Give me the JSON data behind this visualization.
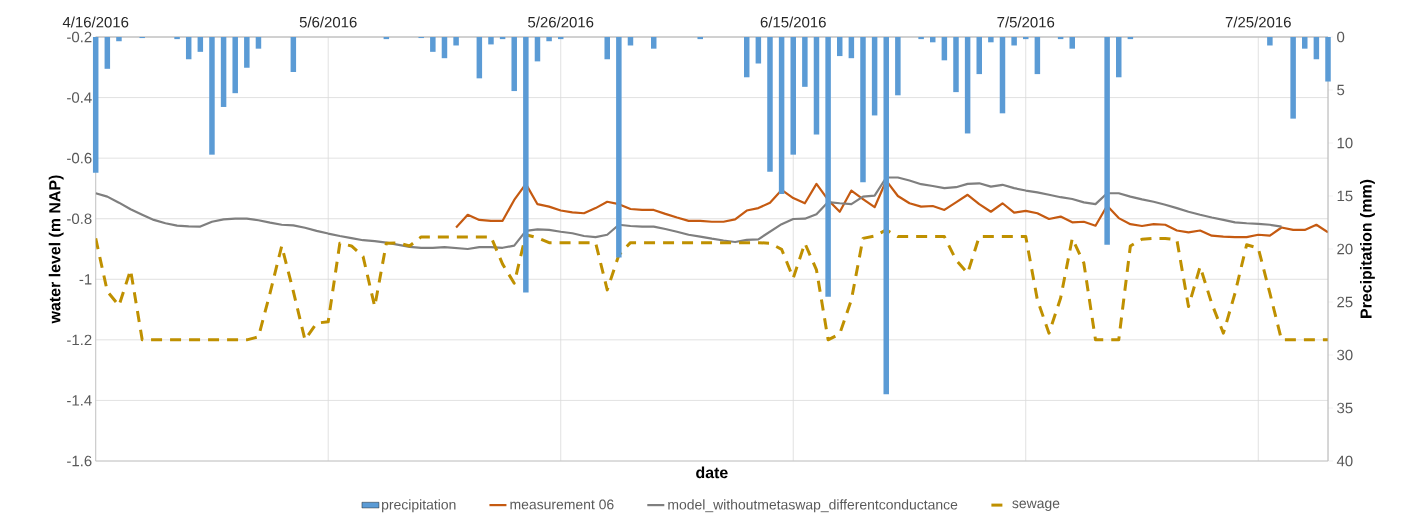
{
  "chart_data": {
    "type": "line",
    "xlabel": "date",
    "ylabel": "water level (m NAP)",
    "y2label": "Precipitation (mm)",
    "x": [
      "2016-04-16",
      "2016-04-17",
      "2016-04-18",
      "2016-04-19",
      "2016-04-20",
      "2016-04-21",
      "2016-04-22",
      "2016-04-23",
      "2016-04-24",
      "2016-04-25",
      "2016-04-26",
      "2016-04-27",
      "2016-04-28",
      "2016-04-29",
      "2016-04-30",
      "2016-05-01",
      "2016-05-02",
      "2016-05-03",
      "2016-05-04",
      "2016-05-05",
      "2016-05-06",
      "2016-05-07",
      "2016-05-08",
      "2016-05-09",
      "2016-05-10",
      "2016-05-11",
      "2016-05-12",
      "2016-05-13",
      "2016-05-14",
      "2016-05-15",
      "2016-05-16",
      "2016-05-17",
      "2016-05-18",
      "2016-05-19",
      "2016-05-20",
      "2016-05-21",
      "2016-05-22",
      "2016-05-23",
      "2016-05-24",
      "2016-05-25",
      "2016-05-26",
      "2016-05-27",
      "2016-05-28",
      "2016-05-29",
      "2016-05-30",
      "2016-05-31",
      "2016-06-01",
      "2016-06-02",
      "2016-06-03",
      "2016-06-04",
      "2016-06-05",
      "2016-06-06",
      "2016-06-07",
      "2016-06-08",
      "2016-06-09",
      "2016-06-10",
      "2016-06-11",
      "2016-06-12",
      "2016-06-13",
      "2016-06-14",
      "2016-06-15",
      "2016-06-16",
      "2016-06-17",
      "2016-06-18",
      "2016-06-19",
      "2016-06-20",
      "2016-06-21",
      "2016-06-22",
      "2016-06-23",
      "2016-06-24",
      "2016-06-25",
      "2016-06-26",
      "2016-06-27",
      "2016-06-28",
      "2016-06-29",
      "2016-06-30",
      "2016-07-01",
      "2016-07-02",
      "2016-07-03",
      "2016-07-04",
      "2016-07-05",
      "2016-07-06",
      "2016-07-07",
      "2016-07-08",
      "2016-07-09",
      "2016-07-10",
      "2016-07-11",
      "2016-07-12",
      "2016-07-13",
      "2016-07-14",
      "2016-07-15",
      "2016-07-16",
      "2016-07-17",
      "2016-07-18",
      "2016-07-19",
      "2016-07-20",
      "2016-07-21",
      "2016-07-22",
      "2016-07-23",
      "2016-07-24",
      "2016-07-25",
      "2016-07-26",
      "2016-07-27",
      "2016-07-28",
      "2016-07-29",
      "2016-07-30",
      "2016-07-31"
    ],
    "series": [
      {
        "name": "precipitation",
        "type": "bar",
        "axis": "y2",
        "color": "#5b9bd5",
        "values": [
          12.8,
          3.0,
          0.4,
          null,
          0.1,
          null,
          null,
          0.2,
          2.1,
          1.4,
          11.1,
          6.6,
          5.3,
          2.9,
          1.1,
          null,
          null,
          3.3,
          null,
          null,
          null,
          null,
          null,
          null,
          null,
          0.2,
          null,
          null,
          0.1,
          1.4,
          2.0,
          0.8,
          null,
          3.9,
          0.7,
          0.2,
          5.1,
          24.1,
          2.3,
          0.4,
          0.2,
          null,
          null,
          null,
          2.1,
          20.8,
          0.8,
          null,
          1.1,
          null,
          null,
          null,
          0.2,
          null,
          null,
          null,
          3.8,
          2.5,
          12.7,
          14.8,
          11.1,
          4.7,
          9.2,
          24.5,
          1.8,
          2.0,
          13.7,
          7.4,
          33.7,
          5.5,
          null,
          0.2,
          0.5,
          2.2,
          5.2,
          9.1,
          3.5,
          0.5,
          7.2,
          0.8,
          0.2,
          3.5,
          null,
          0.2,
          1.1,
          null,
          null,
          19.6,
          3.8,
          0.2,
          null,
          null,
          null,
          null,
          null,
          null,
          null,
          null,
          null,
          null,
          null,
          0.8,
          null,
          7.7,
          1.1,
          2.1,
          4.2
        ]
      },
      {
        "name": "measurement 06",
        "color": "#c55a11",
        "values": [
          null,
          null,
          null,
          null,
          null,
          null,
          null,
          null,
          null,
          null,
          null,
          null,
          null,
          null,
          null,
          null,
          null,
          null,
          null,
          null,
          null,
          null,
          null,
          null,
          null,
          null,
          null,
          null,
          null,
          null,
          null,
          -0.829,
          -0.787,
          -0.804,
          -0.807,
          -0.807,
          -0.738,
          -0.685,
          -0.752,
          -0.76,
          -0.773,
          -0.779,
          -0.782,
          -0.765,
          -0.744,
          -0.752,
          -0.768,
          -0.771,
          -0.771,
          -0.784,
          -0.796,
          -0.807,
          -0.807,
          -0.81,
          -0.81,
          -0.802,
          -0.773,
          -0.765,
          -0.747,
          -0.705,
          -0.732,
          -0.749,
          -0.685,
          -0.738,
          -0.777,
          -0.707,
          -0.735,
          -0.762,
          -0.674,
          -0.725,
          -0.749,
          -0.76,
          -0.758,
          -0.771,
          -0.746,
          -0.721,
          -0.752,
          -0.777,
          -0.749,
          -0.78,
          -0.774,
          -0.782,
          -0.801,
          -0.793,
          -0.812,
          -0.81,
          -0.823,
          -0.757,
          -0.798,
          -0.818,
          -0.824,
          -0.818,
          -0.82,
          -0.839,
          -0.845,
          -0.839,
          -0.856,
          -0.859,
          -0.861,
          -0.861,
          -0.853,
          -0.856,
          -0.829,
          -0.837,
          -0.837,
          -0.82,
          -0.845
        ]
      },
      {
        "name": "model_withoutmetaswap_differentconductance",
        "color": "#7f7f7f",
        "values": [
          -0.716,
          -0.727,
          -0.747,
          -0.769,
          -0.787,
          -0.804,
          -0.815,
          -0.823,
          -0.825,
          -0.826,
          -0.81,
          -0.802,
          -0.8,
          -0.8,
          -0.805,
          -0.813,
          -0.82,
          -0.822,
          -0.83,
          -0.84,
          -0.849,
          -0.857,
          -0.864,
          -0.871,
          -0.874,
          -0.879,
          -0.886,
          -0.893,
          -0.896,
          -0.896,
          -0.894,
          -0.897,
          -0.9,
          -0.894,
          -0.894,
          -0.896,
          -0.889,
          -0.84,
          -0.835,
          -0.837,
          -0.843,
          -0.848,
          -0.857,
          -0.861,
          -0.853,
          -0.82,
          -0.824,
          -0.826,
          -0.826,
          -0.834,
          -0.843,
          -0.853,
          -0.859,
          -0.866,
          -0.872,
          -0.877,
          -0.87,
          -0.868,
          -0.843,
          -0.818,
          -0.801,
          -0.8,
          -0.785,
          -0.745,
          -0.749,
          -0.752,
          -0.727,
          -0.724,
          -0.664,
          -0.664,
          -0.674,
          -0.686,
          -0.692,
          -0.699,
          -0.696,
          -0.685,
          -0.683,
          -0.694,
          -0.688,
          -0.699,
          -0.707,
          -0.713,
          -0.721,
          -0.729,
          -0.735,
          -0.746,
          -0.752,
          -0.716,
          -0.716,
          -0.727,
          -0.736,
          -0.744,
          -0.754,
          -0.765,
          -0.777,
          -0.787,
          -0.796,
          -0.804,
          -0.812,
          -0.815,
          -0.817,
          -0.82,
          -0.826,
          null,
          null,
          null,
          null
        ]
      },
      {
        "name": "sewage",
        "color": "#bf9000",
        "line_style": "dashed",
        "values": [
          -0.865,
          -1.04,
          -1.087,
          -0.969,
          -1.2,
          -1.2,
          -1.2,
          -1.2,
          -1.2,
          -1.2,
          -1.2,
          -1.2,
          -1.2,
          -1.2,
          -1.19,
          -1.045,
          -0.89,
          -1.04,
          -1.2,
          -1.145,
          -1.14,
          -0.881,
          -0.89,
          -0.925,
          -1.09,
          -0.881,
          -0.88,
          -0.89,
          -0.86,
          -0.86,
          -0.86,
          -0.86,
          -0.86,
          -0.86,
          -0.86,
          -0.95,
          -1.013,
          -0.853,
          -0.863,
          -0.879,
          -0.879,
          -0.879,
          -0.879,
          -0.879,
          -1.035,
          -0.92,
          -0.879,
          -0.879,
          -0.879,
          -0.879,
          -0.879,
          -0.879,
          -0.879,
          -0.879,
          -0.879,
          -0.879,
          -0.879,
          -0.879,
          -0.881,
          -0.901,
          -0.996,
          -0.881,
          -0.969,
          -1.2,
          -1.18,
          -1.068,
          -0.865,
          -0.857,
          -0.837,
          -0.859,
          -0.859,
          -0.859,
          -0.859,
          -0.859,
          -0.936,
          -0.98,
          -0.859,
          -0.859,
          -0.859,
          -0.859,
          -0.859,
          -1.068,
          -1.178,
          -1.062,
          -0.865,
          -0.947,
          -1.2,
          -1.2,
          -1.2,
          -0.89,
          -0.868,
          -0.865,
          -0.865,
          -0.87,
          -1.09,
          -0.958,
          -1.08,
          -1.178,
          -1.046,
          -0.886,
          -0.897,
          -1.046,
          -1.2,
          -1.2,
          -1.2,
          -1.2,
          -1.2
        ]
      }
    ],
    "xlim": [
      "2016-04-16",
      "2016-07-31"
    ],
    "xticks": [
      {
        "value": "2016-04-16",
        "label": "4/16/2016"
      },
      {
        "value": "2016-05-06",
        "label": "5/6/2016"
      },
      {
        "value": "2016-05-26",
        "label": "5/26/2016"
      },
      {
        "value": "2016-06-15",
        "label": "6/15/2016"
      },
      {
        "value": "2016-07-05",
        "label": "7/5/2016"
      },
      {
        "value": "2016-07-25",
        "label": "7/25/2016"
      }
    ],
    "ylim": [
      -1.6,
      -0.2
    ],
    "yticks": [
      -1.6,
      -1.4,
      -1.2,
      -1,
      -0.8,
      -0.6,
      -0.4,
      -0.2
    ],
    "y2lim": [
      40,
      0
    ],
    "y2ticks": [
      0,
      5,
      10,
      15,
      20,
      25,
      30,
      35,
      40
    ],
    "grid": true,
    "legend": "bottom",
    "marker": "none",
    "line_style": "solid"
  }
}
